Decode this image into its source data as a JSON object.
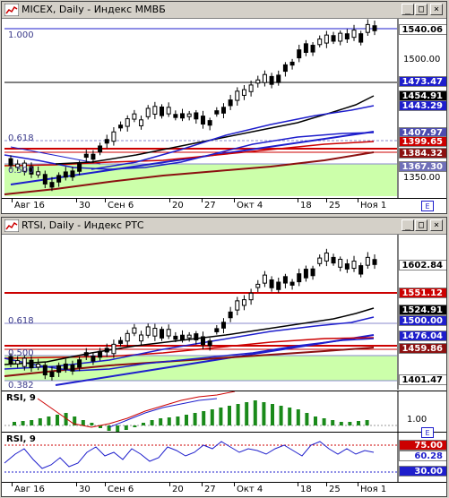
{
  "windows": {
    "micex": {
      "title": "MICEX, Daily - Индекс ММВБ",
      "level_label": "1.000",
      "fibo_labels": [
        "0.618",
        "0.500"
      ],
      "axis_labels": [
        "1500.00",
        "1350.00"
      ],
      "price_boxes": [
        {
          "value": "1540.06",
          "bg": "#ffffff",
          "fg": "#000000"
        },
        {
          "value": "1473.47",
          "bg": "#1e1ecc",
          "fg": "#ffffff"
        },
        {
          "value": "1454.91",
          "bg": "#000000",
          "fg": "#ffffff"
        },
        {
          "value": "1443.29",
          "bg": "#1e1ecc",
          "fg": "#ffffff"
        },
        {
          "value": "1407.97",
          "bg": "#4c4cb0",
          "fg": "#ffffff"
        },
        {
          "value": "1399.65",
          "bg": "#cc0000",
          "fg": "#ffffff"
        },
        {
          "value": "1384.32",
          "bg": "#8b1010",
          "fg": "#ffffff"
        },
        {
          "value": "1367.30",
          "bg": "#6f6fb8",
          "fg": "#ffffff"
        }
      ],
      "dates": [
        "Авг 16",
        "30",
        "Сен 6",
        "20",
        "27",
        "Окт 4",
        "18",
        "25",
        "Ноя 1"
      ]
    },
    "rtsi": {
      "title": "RTSI, Daily - Индекс РТС",
      "fibo_labels": [
        "0.618",
        "0.500",
        "0.382"
      ],
      "price_boxes": [
        {
          "value": "1602.84",
          "bg": "#ffffff",
          "fg": "#000000"
        },
        {
          "value": "1551.12",
          "bg": "#cc0000",
          "fg": "#ffffff"
        },
        {
          "value": "1524.91",
          "bg": "#000000",
          "fg": "#ffffff"
        },
        {
          "value": "1500.00",
          "bg": "#1e1ecc",
          "fg": "#ffffff"
        },
        {
          "value": "1476.04",
          "bg": "#1e1ecc",
          "fg": "#ffffff"
        },
        {
          "value": "1459.86",
          "bg": "#8b1010",
          "fg": "#ffffff"
        },
        {
          "value": "1401.47",
          "bg": "#ffffff",
          "fg": "#000000"
        }
      ],
      "macd_label": "RSI, 9",
      "macd_value": "1.00",
      "rsi_label": "RSI, 9",
      "rsi_boxes": [
        {
          "value": "75.00",
          "bg": "#cc0000",
          "fg": "#ffffff"
        },
        {
          "value": "60.28",
          "bg": "#ffffff",
          "fg": "#1e1ecc"
        },
        {
          "value": "30.00",
          "bg": "#1e1ecc",
          "fg": "#ffffff"
        }
      ],
      "dates": [
        "Авг 16",
        "30",
        "Сен 6",
        "20",
        "27",
        "Окт 4",
        "18",
        "25",
        "Ноя 1"
      ]
    }
  },
  "icons": {
    "minimize": "_",
    "maximize": "□",
    "close": "×"
  },
  "colors": {
    "fibo_zone": "#ccffaa",
    "ma_black": "#000000",
    "ma_blue": "#1e1ecc",
    "ma_red": "#cc0000",
    "ma_darkred": "#8b1010"
  }
}
